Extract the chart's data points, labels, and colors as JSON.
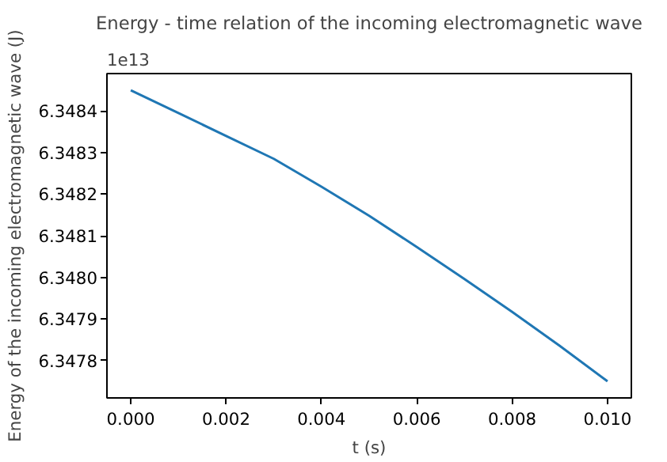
{
  "chart_data": {
    "type": "line",
    "title": "Energy - time relation of the incoming electromagnetic wave",
    "xlabel": "t (s)",
    "ylabel": "Energy of the incoming electromagnetic wave (J)",
    "annotations": [
      "1e13"
    ],
    "x": [
      0,
      0.001,
      0.002,
      0.003,
      0.004,
      0.005,
      0.006,
      0.007,
      0.008,
      0.009,
      0.01
    ],
    "series": [
      {
        "color": "#1f77b4",
        "values": [
          6.34845,
          6.348395,
          6.34834,
          6.348285,
          6.348218,
          6.348148,
          6.348073,
          6.347996,
          6.347917,
          6.347835,
          6.34775
        ]
      }
    ],
    "xlim": [
      -0.0005,
      0.0105
    ],
    "ylim": [
      6.34771,
      6.34849
    ],
    "xticks": [
      {
        "value": 0,
        "label": "0.000"
      },
      {
        "value": 0.002,
        "label": "0.002"
      },
      {
        "value": 0.004,
        "label": "0.004"
      },
      {
        "value": 0.006,
        "label": "0.006"
      },
      {
        "value": 0.008,
        "label": "0.008"
      },
      {
        "value": 0.01,
        "label": "0.010"
      }
    ],
    "yticks": [
      {
        "value": 6.3478,
        "label": "6.3478"
      },
      {
        "value": 6.3479,
        "label": "6.3479"
      },
      {
        "value": 6.348,
        "label": "6.3480"
      },
      {
        "value": 6.3481,
        "label": "6.3481"
      },
      {
        "value": 6.3482,
        "label": "6.3482"
      },
      {
        "value": 6.3483,
        "label": "6.3483"
      },
      {
        "value": 6.3484,
        "label": "6.3484"
      }
    ],
    "grid": false,
    "marker": "none",
    "line_style": "solid"
  }
}
